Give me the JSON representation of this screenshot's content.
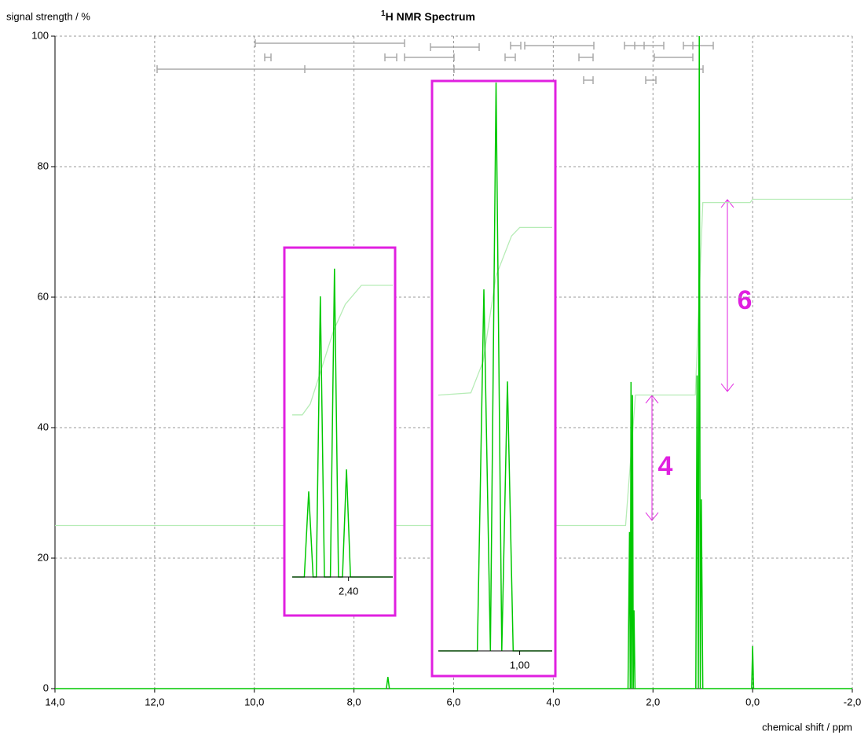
{
  "chart_data": {
    "type": "line",
    "title_sup": "1",
    "title": "H NMR Spectrum",
    "y_label": "signal strength / %",
    "x_label": "chemical shift / ppm",
    "xlim": [
      14,
      -2
    ],
    "ylim": [
      0,
      100
    ],
    "xticks": [
      {
        "value": 14,
        "label": "14,0"
      },
      {
        "value": 12,
        "label": "12,0"
      },
      {
        "value": 10,
        "label": "10,0"
      },
      {
        "value": 8,
        "label": "8,0"
      },
      {
        "value": 6,
        "label": "6,0"
      },
      {
        "value": 4,
        "label": "4,0"
      },
      {
        "value": 2,
        "label": "2,0"
      },
      {
        "value": 0,
        "label": "0,0"
      },
      {
        "value": -2,
        "label": "-2,0"
      }
    ],
    "yticks": [
      0,
      20,
      40,
      60,
      80,
      100
    ],
    "grid": true,
    "series": [
      {
        "color": "#b6ecb6",
        "x": [
          14,
          2.55,
          2.35,
          1.15,
          1.0,
          0.05,
          0,
          -2
        ],
        "values": [
          25,
          25,
          45,
          45,
          74.5,
          74.5,
          75,
          75
        ]
      },
      {
        "color": "#00c800",
        "x": [
          14,
          7.35,
          7.32,
          7.29,
          2.5,
          2.47,
          2.455,
          2.44,
          2.425,
          2.41,
          2.395,
          2.38,
          2.36,
          1.14,
          1.115,
          1.09,
          1.07,
          1.05,
          1.03,
          1.0,
          0.02,
          0,
          -0.02,
          -2
        ],
        "values": [
          0,
          0,
          1.8,
          0,
          0,
          24,
          0,
          47,
          0,
          45,
          0,
          12,
          0,
          0,
          48,
          0,
          100,
          0,
          29,
          0,
          0,
          6.5,
          0,
          0
        ]
      }
    ],
    "annotations": [
      "4",
      "6"
    ],
    "insets": [
      {
        "xlim": [
          2.54,
          2.29
        ],
        "ylim": [
          0,
          62.5
        ],
        "xticks": [
          {
            "value": 2.4,
            "label": "2,40"
          }
        ],
        "spectrum": {
          "color": "#00c800",
          "x": [
            2.54,
            2.51,
            2.499,
            2.488,
            2.48,
            2.47,
            2.46,
            2.445,
            2.435,
            2.425,
            2.415,
            2.405,
            2.395,
            2.29
          ],
          "values": [
            0,
            0,
            16.3,
            0,
            0,
            53.5,
            0,
            0,
            58.8,
            0,
            0,
            20.5,
            0,
            0
          ]
        },
        "integral": {
          "color": "#b6ecb6",
          "x": [
            2.54,
            2.515,
            2.495,
            2.466,
            2.437,
            2.408,
            2.368,
            2.29
          ],
          "values": [
            30.9,
            30.9,
            33,
            40,
            47,
            52,
            55.6,
            55.6
          ]
        }
      },
      {
        "xlim": [
          1.1,
          0.96
        ],
        "ylim": [
          0,
          100
        ],
        "xticks": [
          {
            "value": 1.0,
            "label": "1,00"
          }
        ],
        "spectrum": {
          "color": "#00c800",
          "x": [
            1.1,
            1.052,
            1.044,
            1.036,
            1.029,
            1.022,
            1.015,
            1.008,
            0.96
          ],
          "values": [
            0,
            0,
            63.6,
            0,
            100,
            0,
            47.4,
            0,
            0
          ]
        },
        "integral": {
          "color": "#b6ecb6",
          "x": [
            1.1,
            1.06,
            1.045,
            1.029,
            1.01,
            1.0,
            0.96
          ],
          "values": [
            45,
            45.4,
            50.9,
            66,
            73,
            74.5,
            74.5
          ]
        }
      }
    ]
  }
}
